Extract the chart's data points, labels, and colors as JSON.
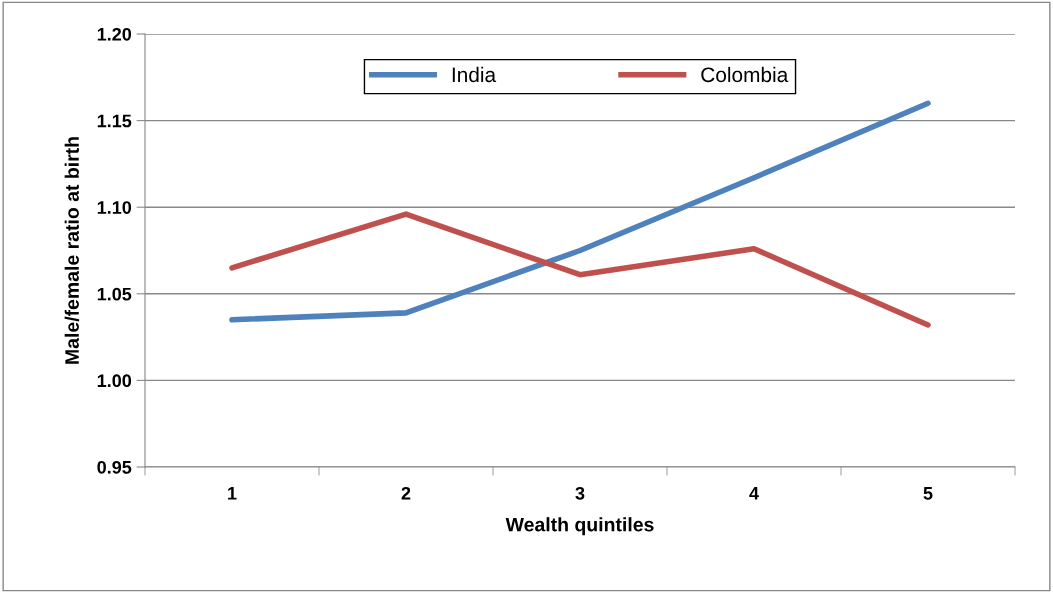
{
  "chart_data": {
    "type": "line",
    "xlabel": "Wealth quintiles",
    "ylabel": "Male/female ratio at birth",
    "categories": [
      "1",
      "2",
      "3",
      "4",
      "5"
    ],
    "series": [
      {
        "name": "India",
        "color": "#4f81bd",
        "values": [
          1.035,
          1.039,
          1.075,
          1.117,
          1.16
        ]
      },
      {
        "name": "Colombia",
        "color": "#c0504d",
        "values": [
          1.065,
          1.096,
          1.061,
          1.076,
          1.032
        ]
      }
    ],
    "ylim": [
      0.95,
      1.2
    ],
    "yticks": [
      {
        "value": 0.95,
        "label": "0.95"
      },
      {
        "value": 1.0,
        "label": "1.00"
      },
      {
        "value": 1.05,
        "label": "1.05"
      },
      {
        "value": 1.1,
        "label": "1.10"
      },
      {
        "value": 1.15,
        "label": "1.15"
      },
      {
        "value": 1.2,
        "label": "1.20"
      }
    ],
    "grid": "y",
    "legend": "top",
    "marker": "none",
    "line_style": "solid"
  }
}
